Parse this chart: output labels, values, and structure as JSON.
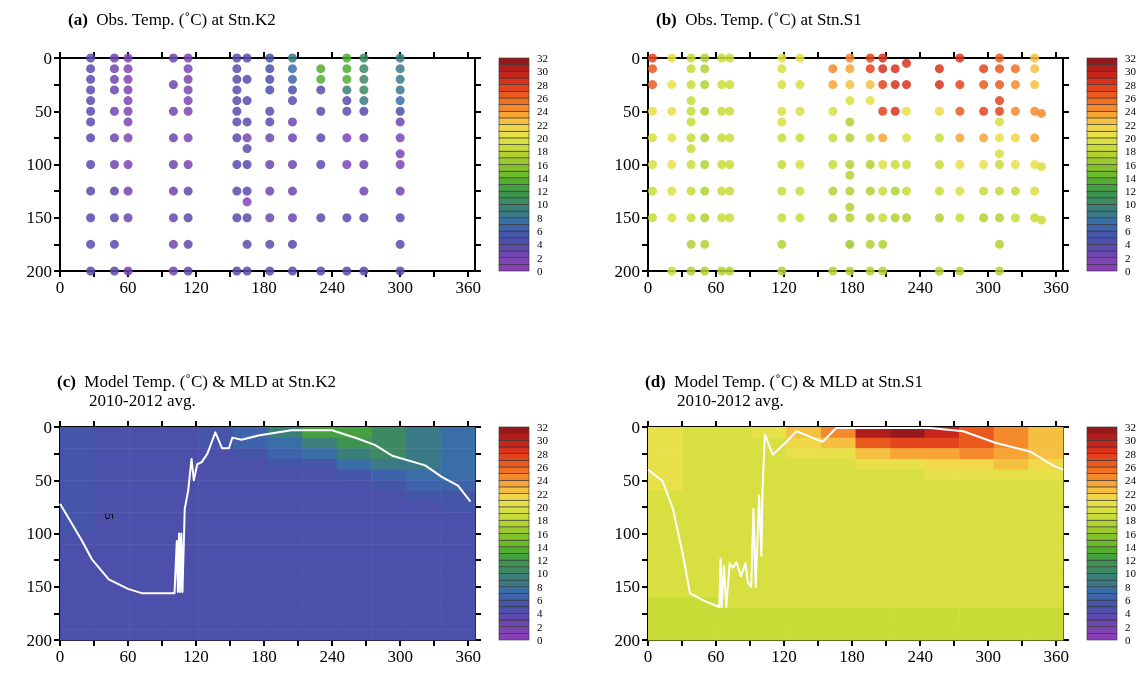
{
  "chart_data": [
    {
      "type": "scatter",
      "title": "(a)  Obs. Temp. (˚C) at Stn.K2",
      "marker": "circle",
      "xlim": [
        0,
        366
      ],
      "ylim": [
        200,
        0
      ],
      "xticks": [
        0,
        {
          "value": 30,
          "label": null
        },
        60,
        {
          "value": 90,
          "label": null
        },
        120,
        {
          "value": 150,
          "label": null
        },
        180,
        {
          "value": 210,
          "label": null
        },
        240,
        {
          "value": 270,
          "label": null
        },
        300,
        {
          "value": 330,
          "label": null
        },
        360
      ],
      "yticks": [
        0,
        {
          "value": 25,
          "label": null
        },
        50,
        {
          "value": 75,
          "label": null
        },
        100,
        {
          "value": 125,
          "label": null
        },
        150,
        {
          "value": 175,
          "label": null
        },
        200
      ],
      "clim": [
        0,
        32
      ],
      "cticks": [
        0,
        2,
        4,
        6,
        8,
        10,
        12,
        14,
        16,
        18,
        20,
        22,
        24,
        26,
        28,
        30,
        32
      ],
      "x": [
        27,
        27,
        27,
        27,
        27,
        27,
        27,
        27,
        27,
        27,
        27,
        27,
        27,
        48,
        48,
        48,
        48,
        48,
        48,
        48,
        48,
        48,
        48,
        48,
        60,
        60,
        60,
        60,
        60,
        60,
        60,
        60,
        60,
        60,
        60,
        60,
        100,
        100,
        100,
        100,
        100,
        100,
        100,
        100,
        100,
        113,
        113,
        113,
        113,
        113,
        113,
        113,
        113,
        113,
        113,
        113,
        113,
        156,
        156,
        156,
        156,
        156,
        156,
        156,
        156,
        156,
        156,
        156,
        156,
        165,
        165,
        165,
        165,
        165,
        165,
        165,
        165,
        165,
        165,
        165,
        165,
        185,
        185,
        185,
        185,
        185,
        185,
        185,
        185,
        185,
        185,
        185,
        185,
        205,
        205,
        205,
        205,
        205,
        205,
        205,
        205,
        205,
        205,
        205,
        205,
        230,
        230,
        230,
        230,
        230,
        230,
        230,
        230,
        253,
        253,
        253,
        253,
        253,
        253,
        253,
        253,
        253,
        253,
        268,
        268,
        268,
        268,
        268,
        268,
        268,
        268,
        268,
        268,
        268,
        300,
        300,
        300,
        300,
        300,
        300,
        300,
        300,
        300,
        300,
        300,
        300,
        300,
        300
      ],
      "values": [
        0,
        10,
        20,
        30,
        40,
        50,
        60,
        75,
        100,
        125,
        150,
        175,
        200,
        0,
        10,
        20,
        30,
        50,
        75,
        100,
        125,
        150,
        175,
        200,
        0,
        10,
        20,
        30,
        40,
        50,
        60,
        75,
        100,
        125,
        150,
        200,
        0,
        25,
        50,
        75,
        100,
        125,
        150,
        175,
        200,
        0,
        10,
        20,
        30,
        40,
        50,
        75,
        100,
        125,
        150,
        175,
        200,
        0,
        10,
        20,
        30,
        40,
        50,
        60,
        75,
        100,
        125,
        150,
        200,
        0,
        20,
        40,
        60,
        75,
        85,
        100,
        125,
        135,
        150,
        175,
        200,
        0,
        10,
        20,
        30,
        50,
        60,
        75,
        100,
        125,
        150,
        175,
        200,
        0,
        10,
        20,
        30,
        40,
        60,
        75,
        100,
        125,
        150,
        175,
        200,
        10,
        20,
        30,
        50,
        75,
        100,
        150,
        200,
        0,
        10,
        20,
        30,
        40,
        50,
        75,
        100,
        150,
        200,
        0,
        10,
        20,
        30,
        40,
        50,
        75,
        100,
        125,
        150,
        200,
        0,
        10,
        20,
        30,
        40,
        50,
        60,
        75,
        90,
        100,
        125,
        150,
        175,
        200
      ],
      "cvalues": [
        3,
        3,
        3,
        3,
        3,
        3,
        3,
        3,
        3,
        3,
        3,
        3,
        3,
        2,
        2,
        2,
        2,
        2,
        2,
        2,
        3,
        3,
        3,
        3,
        1,
        1,
        1,
        1,
        1,
        1,
        1,
        1,
        1,
        2,
        2,
        2,
        2,
        2,
        2,
        2,
        2,
        2,
        2,
        2,
        2,
        1,
        1,
        1,
        1,
        1,
        1,
        1,
        1,
        3,
        3,
        3,
        3,
        3,
        3,
        3,
        3,
        3,
        3,
        3,
        3,
        3,
        3,
        3,
        3,
        3,
        3,
        3,
        3,
        1,
        3,
        3,
        3,
        0,
        3,
        3,
        3,
        5,
        5,
        4,
        4,
        3,
        3,
        2,
        2,
        2,
        2,
        3,
        3,
        8,
        7,
        6,
        4,
        3,
        2,
        2,
        2,
        2,
        2,
        3,
        3,
        13,
        13,
        3,
        3,
        3,
        3,
        3,
        3,
        13,
        13,
        13,
        9,
        3,
        3,
        1,
        1,
        3,
        3,
        10,
        10,
        10,
        10,
        8,
        3,
        2,
        2,
        2,
        3,
        3,
        8,
        8,
        8,
        8,
        7,
        4,
        2,
        1,
        1,
        1,
        2,
        3,
        3,
        3
      ]
    },
    {
      "type": "scatter",
      "title": "(b)  Obs. Temp. (˚C) at Stn.S1",
      "marker": "circle",
      "xlim": [
        0,
        366
      ],
      "ylim": [
        200,
        0
      ],
      "xticks": [
        0,
        {
          "value": 30,
          "label": null
        },
        60,
        {
          "value": 90,
          "label": null
        },
        120,
        {
          "value": 150,
          "label": null
        },
        180,
        {
          "value": 210,
          "label": null
        },
        240,
        {
          "value": 270,
          "label": null
        },
        300,
        {
          "value": 330,
          "label": null
        },
        360
      ],
      "yticks": [
        0,
        {
          "value": 25,
          "label": null
        },
        50,
        {
          "value": 75,
          "label": null
        },
        100,
        {
          "value": 125,
          "label": null
        },
        150,
        {
          "value": 175,
          "label": null
        },
        200
      ],
      "clim": [
        0,
        32
      ],
      "cticks": [
        0,
        2,
        4,
        6,
        8,
        10,
        12,
        14,
        16,
        18,
        20,
        22,
        24,
        26,
        28,
        30,
        32
      ],
      "x": [
        4,
        4,
        4,
        4,
        4,
        4,
        4,
        4,
        21,
        21,
        21,
        21,
        21,
        21,
        21,
        21,
        38,
        38,
        38,
        38,
        38,
        38,
        38,
        38,
        38,
        38,
        38,
        38,
        38,
        50,
        50,
        50,
        50,
        50,
        50,
        50,
        50,
        50,
        50,
        65,
        65,
        65,
        65,
        65,
        65,
        65,
        65,
        72,
        72,
        72,
        72,
        72,
        72,
        72,
        72,
        118,
        118,
        118,
        118,
        118,
        118,
        118,
        118,
        118,
        118,
        118,
        134,
        134,
        134,
        134,
        134,
        134,
        134,
        163,
        163,
        163,
        163,
        163,
        163,
        163,
        163,
        178,
        178,
        178,
        178,
        178,
        178,
        178,
        178,
        178,
        178,
        178,
        178,
        178,
        196,
        196,
        196,
        196,
        196,
        196,
        196,
        196,
        196,
        196,
        207,
        207,
        207,
        207,
        207,
        207,
        207,
        207,
        207,
        207,
        218,
        218,
        218,
        218,
        218,
        218,
        228,
        228,
        228,
        228,
        228,
        228,
        228,
        257,
        257,
        257,
        257,
        257,
        257,
        257,
        257,
        275,
        275,
        275,
        275,
        275,
        275,
        275,
        275,
        296,
        296,
        296,
        296,
        296,
        296,
        296,
        310,
        310,
        310,
        310,
        310,
        310,
        310,
        310,
        310,
        310,
        310,
        310,
        310,
        324,
        324,
        324,
        324,
        324,
        324,
        324,
        341,
        341,
        341,
        341,
        341,
        341,
        341,
        341,
        347,
        347,
        347
      ],
      "values": [
        0,
        10,
        25,
        50,
        75,
        100,
        125,
        150,
        0,
        25,
        50,
        75,
        100,
        125,
        150,
        200,
        0,
        10,
        25,
        40,
        50,
        60,
        75,
        85,
        100,
        125,
        150,
        175,
        200,
        0,
        10,
        25,
        50,
        75,
        100,
        125,
        150,
        175,
        200,
        0,
        25,
        50,
        75,
        100,
        125,
        150,
        200,
        0,
        25,
        50,
        75,
        100,
        125,
        150,
        200,
        0,
        10,
        25,
        50,
        60,
        75,
        100,
        125,
        150,
        175,
        200,
        0,
        25,
        50,
        75,
        100,
        125,
        150,
        10,
        25,
        50,
        75,
        100,
        125,
        150,
        200,
        0,
        10,
        25,
        40,
        60,
        75,
        100,
        110,
        125,
        140,
        150,
        175,
        200,
        0,
        10,
        25,
        40,
        75,
        100,
        125,
        150,
        175,
        200,
        0,
        10,
        25,
        50,
        75,
        100,
        125,
        150,
        175,
        200,
        10,
        25,
        50,
        100,
        125,
        150,
        5,
        25,
        50,
        75,
        100,
        125,
        150,
        10,
        25,
        50,
        75,
        100,
        125,
        150,
        200,
        0,
        25,
        50,
        75,
        100,
        125,
        150,
        200,
        10,
        25,
        50,
        75,
        100,
        125,
        150,
        0,
        10,
        25,
        40,
        50,
        60,
        75,
        90,
        100,
        125,
        150,
        175,
        200,
        10,
        25,
        50,
        75,
        100,
        125,
        150,
        0,
        10,
        25,
        50,
        75,
        100,
        125,
        150,
        52,
        102,
        152
      ],
      "cvalues": [
        27,
        26,
        26,
        20,
        19,
        19,
        18,
        18,
        20,
        20,
        20,
        20,
        20,
        19,
        19,
        18,
        18,
        18,
        18,
        18,
        18,
        18,
        18,
        18,
        18,
        18,
        18,
        17,
        17,
        17,
        17,
        17,
        17,
        17,
        17,
        17,
        17,
        17,
        17,
        18,
        18,
        18,
        18,
        18,
        18,
        18,
        17,
        18,
        18,
        18,
        18,
        18,
        18,
        18,
        17,
        20,
        19,
        19,
        19,
        19,
        18,
        18,
        18,
        18,
        17,
        17,
        20,
        19,
        19,
        18,
        19,
        18,
        18,
        24,
        23,
        19,
        18,
        18,
        17,
        17,
        17,
        24,
        23,
        22,
        19,
        17,
        17,
        17,
        17,
        17,
        17,
        17,
        16,
        17,
        27,
        27,
        22,
        20,
        18,
        17,
        17,
        17,
        17,
        17,
        28,
        28,
        27,
        27,
        23,
        19,
        18,
        18,
        17,
        17,
        28,
        28,
        28,
        18,
        17,
        17,
        28,
        28,
        20,
        19,
        18,
        18,
        17,
        28,
        28,
        21,
        18,
        18,
        18,
        17,
        17,
        28,
        27,
        26,
        23,
        21,
        19,
        18,
        17,
        27,
        26,
        27,
        23,
        20,
        18,
        17,
        26,
        26,
        26,
        27,
        27,
        19,
        20,
        19,
        18,
        18,
        17,
        17,
        17,
        25,
        24,
        24,
        21,
        20,
        18,
        18,
        22,
        22,
        22,
        24,
        23,
        20,
        19,
        18,
        24,
        19,
        18
      ]
    },
    {
      "type": "heatmap",
      "title": "(c)  Model Temp. (˚C) & MLD at Stn.K2",
      "subtitle": "2010-2012 avg.",
      "xlim": [
        0,
        366
      ],
      "ylim": [
        200,
        0
      ],
      "xticks": [
        0,
        {
          "value": 30,
          "label": null
        },
        60,
        {
          "value": 90,
          "label": null
        },
        120,
        {
          "value": 150,
          "label": null
        },
        180,
        {
          "value": 210,
          "label": null
        },
        240,
        {
          "value": 270,
          "label": null
        },
        300,
        {
          "value": 330,
          "label": null
        },
        360
      ],
      "yticks": [
        0,
        {
          "value": 25,
          "label": null
        },
        50,
        {
          "value": 75,
          "label": null
        },
        100,
        {
          "value": 125,
          "label": null
        },
        150,
        {
          "value": 175,
          "label": null
        },
        200
      ],
      "clim": [
        0,
        32
      ],
      "cticks": [
        0,
        2,
        4,
        6,
        8,
        10,
        12,
        14,
        16,
        18,
        20,
        22,
        24,
        26,
        28,
        30,
        32
      ],
      "x": [
        15.25,
        45.75,
        76.25,
        106.75,
        137.25,
        167.75,
        198.25,
        228.75,
        259.25,
        289.75,
        320.25,
        350.75
      ],
      "y": [
        5,
        15,
        25,
        35,
        45,
        55,
        65,
        75,
        85,
        95,
        105,
        115,
        125,
        135,
        145,
        155,
        165,
        175,
        185,
        195
      ],
      "cells": [
        [
          5,
          4,
          4,
          4,
          5,
          6,
          9,
          12,
          12,
          10,
          8,
          7
        ],
        [
          5,
          4,
          4,
          4,
          5,
          6,
          7,
          9,
          11,
          10,
          8,
          7
        ],
        [
          5,
          4,
          4,
          4,
          4,
          5,
          6,
          7,
          9,
          10,
          8,
          7
        ],
        [
          5,
          4,
          4,
          4,
          4,
          4,
          5,
          5,
          7,
          8,
          8,
          7
        ],
        [
          5,
          4,
          4,
          4,
          4,
          4,
          4,
          4,
          5,
          6,
          7,
          7
        ],
        [
          5,
          4,
          4,
          4,
          4,
          4,
          4,
          4,
          4,
          5,
          6,
          6
        ],
        [
          5,
          4,
          4,
          4,
          4,
          4,
          4,
          4,
          4,
          4,
          5,
          5
        ],
        [
          5,
          4,
          4,
          4,
          4,
          4,
          4,
          4,
          4,
          4,
          4,
          5
        ],
        [
          5,
          4,
          4,
          4,
          4,
          4,
          4,
          4,
          4,
          4,
          4,
          4
        ],
        [
          5,
          4,
          4,
          4,
          4,
          4,
          4,
          4,
          4,
          4,
          4,
          4
        ],
        [
          4,
          4,
          4,
          4,
          4,
          4,
          4,
          4,
          4,
          4,
          4,
          4
        ],
        [
          4,
          4,
          4,
          4,
          4,
          4,
          4,
          4,
          4,
          4,
          4,
          4
        ],
        [
          4,
          4,
          4,
          4,
          4,
          4,
          4,
          4,
          4,
          4,
          4,
          4
        ],
        [
          4,
          4,
          4,
          4,
          4,
          4,
          4,
          4,
          4,
          4,
          4,
          4
        ],
        [
          4,
          4,
          4,
          4,
          4,
          4,
          4,
          4,
          4,
          4,
          4,
          4
        ],
        [
          4,
          4,
          4,
          4,
          4,
          4,
          4,
          4,
          4,
          4,
          4,
          4
        ],
        [
          4,
          4,
          4,
          4,
          4,
          4,
          4,
          4,
          4,
          4,
          4,
          4
        ],
        [
          4,
          4,
          4,
          4,
          4,
          4,
          4,
          4,
          4,
          4,
          4,
          4
        ],
        [
          4,
          4,
          4,
          4,
          4,
          4,
          4,
          4,
          4,
          4,
          4,
          4
        ],
        [
          4,
          4,
          4,
          4,
          4,
          4,
          4,
          4,
          4,
          4,
          4,
          4
        ]
      ],
      "series": [
        {
          "type": "line",
          "color": "#ffffff",
          "x": [
            0,
            10,
            20,
            28,
            43,
            60,
            72,
            90,
            101,
            103,
            104,
            105,
            106,
            107,
            108,
            110,
            113,
            116,
            118,
            121,
            125,
            130,
            137,
            143,
            149,
            152,
            160,
            175,
            204,
            240,
            263,
            278,
            293,
            322,
            337,
            351,
            362
          ],
          "values": [
            72,
            90,
            108,
            124,
            143,
            152,
            156,
            156,
            156,
            107,
            155,
            100,
            155,
            100,
            155,
            77,
            60,
            30,
            50,
            35,
            33,
            25,
            5,
            20,
            20,
            10,
            12,
            8,
            3,
            3,
            11,
            17,
            27,
            36,
            47,
            55,
            70
          ]
        }
      ],
      "annotations": [
        "5"
      ]
    },
    {
      "type": "heatmap",
      "title": "(d)  Model Temp. (˚C) & MLD at Stn.S1",
      "subtitle": "2010-2012 avg.",
      "xlim": [
        0,
        366
      ],
      "ylim": [
        200,
        0
      ],
      "xticks": [
        0,
        {
          "value": 30,
          "label": null
        },
        60,
        {
          "value": 90,
          "label": null
        },
        120,
        {
          "value": 150,
          "label": null
        },
        180,
        {
          "value": 210,
          "label": null
        },
        240,
        {
          "value": 270,
          "label": null
        },
        300,
        {
          "value": 330,
          "label": null
        },
        360
      ],
      "yticks": [
        0,
        {
          "value": 25,
          "label": null
        },
        50,
        {
          "value": 75,
          "label": null
        },
        100,
        {
          "value": 125,
          "label": null
        },
        150,
        {
          "value": 175,
          "label": null
        },
        200
      ],
      "clim": [
        0,
        32
      ],
      "cticks": [
        0,
        2,
        4,
        6,
        8,
        10,
        12,
        14,
        16,
        18,
        20,
        22,
        24,
        26,
        28,
        30,
        32
      ],
      "x": [
        15.25,
        45.75,
        76.25,
        106.75,
        137.25,
        167.75,
        198.25,
        228.75,
        259.25,
        289.75,
        320.25,
        350.75
      ],
      "y": [
        5,
        15,
        25,
        35,
        45,
        55,
        65,
        75,
        85,
        95,
        105,
        115,
        125,
        135,
        145,
        155,
        165,
        175,
        185,
        195
      ],
      "cells": [
        [
          20,
          19,
          19,
          20,
          22,
          24,
          30,
          31,
          29,
          26,
          24,
          22
        ],
        [
          20,
          19,
          19,
          19,
          21,
          22,
          26,
          27,
          27,
          26,
          24,
          22
        ],
        [
          20,
          19,
          19,
          19,
          20,
          20,
          22,
          23,
          23,
          24,
          23,
          22
        ],
        [
          20,
          19,
          19,
          19,
          19,
          19,
          20,
          20,
          21,
          21,
          22,
          21
        ],
        [
          20,
          19,
          19,
          19,
          19,
          19,
          19,
          19,
          20,
          20,
          20,
          20
        ],
        [
          20,
          19,
          19,
          19,
          19,
          19,
          19,
          19,
          19,
          19,
          19,
          19
        ],
        [
          19,
          19,
          19,
          19,
          19,
          19,
          19,
          19,
          19,
          19,
          19,
          19
        ],
        [
          19,
          19,
          19,
          19,
          19,
          19,
          19,
          19,
          19,
          19,
          19,
          19
        ],
        [
          19,
          19,
          19,
          19,
          19,
          19,
          19,
          19,
          19,
          19,
          19,
          19
        ],
        [
          19,
          19,
          19,
          19,
          19,
          19,
          19,
          19,
          19,
          19,
          19,
          19
        ],
        [
          19,
          19,
          19,
          19,
          19,
          19,
          19,
          19,
          19,
          19,
          19,
          19
        ],
        [
          19,
          19,
          19,
          19,
          19,
          19,
          19,
          19,
          19,
          19,
          19,
          19
        ],
        [
          19,
          19,
          19,
          19,
          19,
          19,
          19,
          19,
          19,
          19,
          19,
          19
        ],
        [
          19,
          19,
          19,
          19,
          19,
          19,
          19,
          19,
          19,
          19,
          19,
          19
        ],
        [
          19,
          19,
          19,
          19,
          19,
          19,
          19,
          19,
          19,
          19,
          19,
          19
        ],
        [
          19,
          19,
          19,
          19,
          19,
          19,
          19,
          19,
          19,
          19,
          19,
          19
        ],
        [
          18,
          18,
          19,
          19,
          19,
          19,
          19,
          19,
          19,
          19,
          19,
          19
        ],
        [
          18,
          18,
          18,
          18,
          18,
          18,
          18,
          18,
          18,
          18,
          18,
          18
        ],
        [
          18,
          18,
          18,
          18,
          18,
          18,
          18,
          18,
          18,
          18,
          18,
          18
        ],
        [
          18,
          18,
          18,
          18,
          18,
          18,
          18,
          18,
          18,
          18,
          18,
          18
        ]
      ],
      "series": [
        {
          "type": "line",
          "color": "#ffffff",
          "x": [
            0,
            13,
            22,
            31,
            37,
            49,
            63,
            64,
            65,
            67,
            69,
            72,
            75,
            78,
            82,
            86,
            88,
            91,
            93,
            95,
            98,
            100,
            101,
            103,
            110,
            122,
            131,
            154,
            166,
            249,
            278,
            307,
            337,
            357,
            366
          ],
          "values": [
            40,
            51,
            77,
            121,
            156,
            163,
            169,
            124,
            169,
            130,
            169,
            128,
            132,
            127,
            140,
            128,
            146,
            150,
            77,
            150,
            64,
            121,
            60,
            7,
            26,
            14,
            4,
            14,
            1,
            1,
            4,
            15,
            23,
            36,
            40
          ]
        }
      ]
    }
  ]
}
